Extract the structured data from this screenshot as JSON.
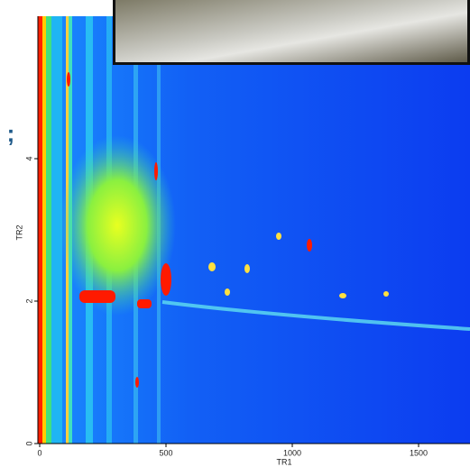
{
  "chart_data": {
    "type": "heatmap",
    "x_label": "TR1",
    "y_label": "TR2",
    "annotation": ";",
    "xlim": [
      0,
      1700
    ],
    "xticks": [
      0,
      500,
      1000,
      1500
    ],
    "ylim": [
      0,
      6
    ],
    "yticks": [
      0,
      2,
      4
    ]
  }
}
